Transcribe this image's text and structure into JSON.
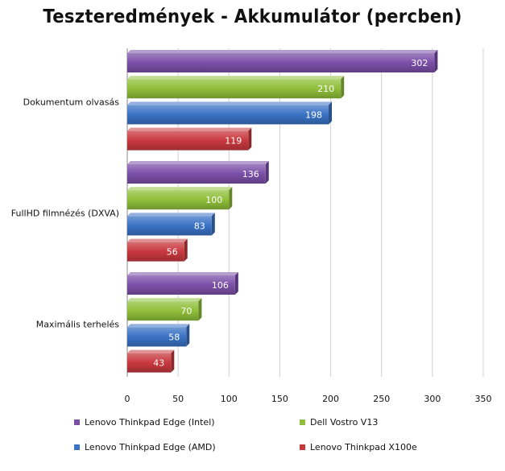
{
  "chart_data": {
    "type": "bar",
    "orientation": "horizontal",
    "title": "Teszteredmények - Akkumulátor (percben)",
    "categories": [
      "Dokumentum olvasás",
      "FullHD filmnézés (DXVA)",
      "Maximális terhelés"
    ],
    "series": [
      {
        "name": "Lenovo Thinkpad Edge (Intel)",
        "color": "#7b4fa8",
        "values": [
          302,
          136,
          106
        ]
      },
      {
        "name": "Dell Vostro V13",
        "color": "#8fbf3a",
        "values": [
          210,
          100,
          70
        ]
      },
      {
        "name": "Lenovo Thinkpad Edge (AMD)",
        "color": "#3a72c4",
        "values": [
          198,
          83,
          58
        ]
      },
      {
        "name": "Lenovo Thinkpad X100e",
        "color": "#c8383e",
        "values": [
          119,
          56,
          43
        ]
      }
    ],
    "xlim": [
      0,
      350
    ],
    "xticks": [
      0,
      50,
      100,
      150,
      200,
      250,
      300,
      350
    ],
    "grid": true,
    "legend_position": "bottom"
  }
}
